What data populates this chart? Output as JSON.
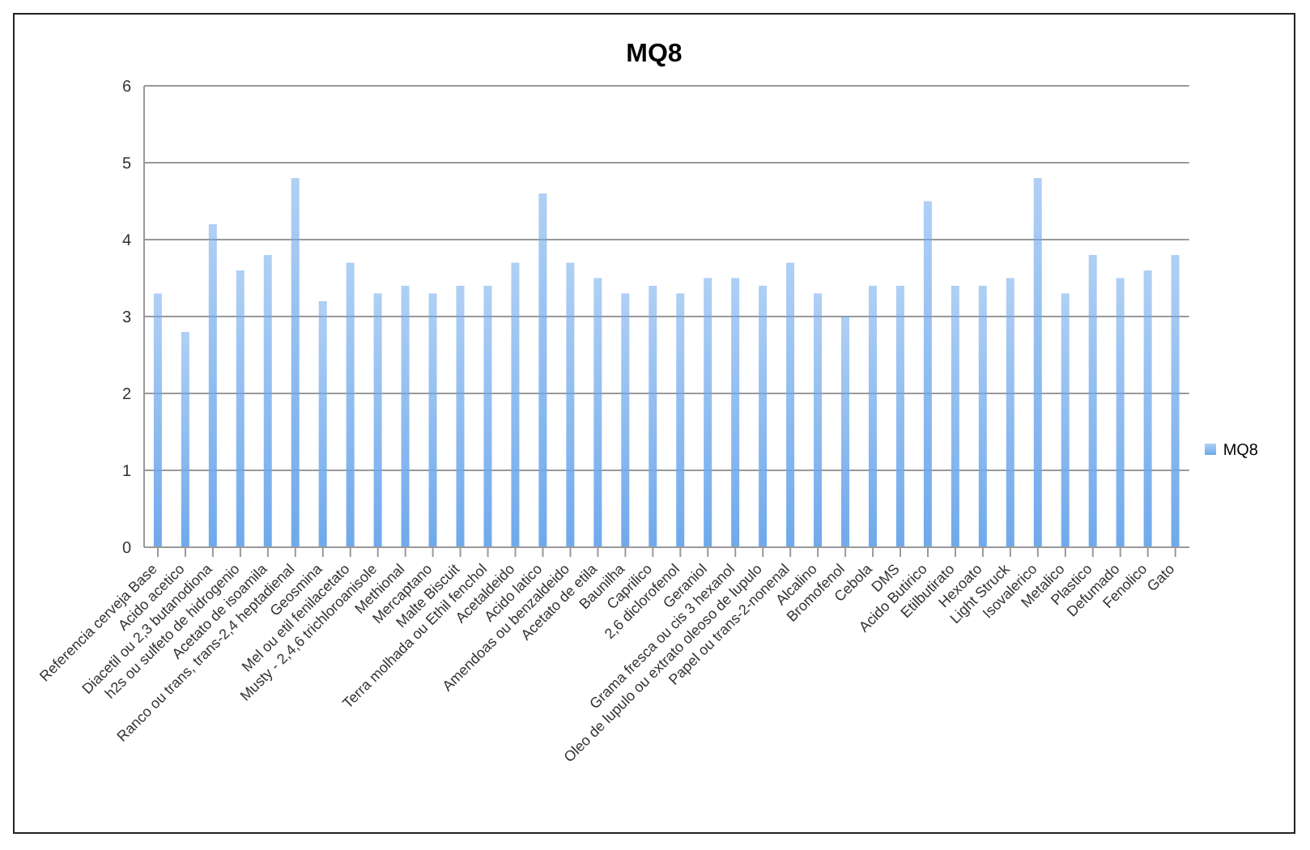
{
  "chart_data": {
    "type": "bar",
    "title": "MQ8",
    "categories": [
      "Referencia cerveja Base",
      "Acido acetico",
      "Diacetil ou 2,3 butanodiona",
      "h2s ou sulfeto de hidrogenio",
      "Acetato de isoamila",
      "Ranco ou trans, trans-2,4 heptadienal",
      "Geosmina",
      "Mel ou etil fenilacetato",
      "Musty - 2,4,6 trichloroanisole",
      "Methional",
      "Mercaptano",
      "Malte Biscuit",
      "Terra molhada ou Ethil fenchol",
      "Acetaldeido",
      "Acido latico",
      "Amendoas ou benzaldeido",
      "Acetato de etila",
      "Baunilha",
      "Caprilico",
      "2,6 diclorofenol",
      "Geraniol",
      "Grama fresca ou cis 3 hexanol",
      "Oleo de lupulo ou extrato oleoso de lupulo",
      "Papel ou trans-2-nonenal",
      "Alcalino",
      "Bromofenol",
      "Cebola",
      "DMS",
      "Acido Butirico",
      "Etilbutirato",
      "Hexoato",
      "Light Struck",
      "Isovalerico",
      "Metalico",
      "Plastico",
      "Defumado",
      "Fenolico",
      "Gato"
    ],
    "series": [
      {
        "name": "MQ8",
        "color": "#6fa9ec",
        "values": [
          3.3,
          2.8,
          4.2,
          3.6,
          3.8,
          4.8,
          3.2,
          3.7,
          3.3,
          3.4,
          3.3,
          3.4,
          3.4,
          3.7,
          4.6,
          3.7,
          3.5,
          3.3,
          3.4,
          3.3,
          3.5,
          3.5,
          3.4,
          3.7,
          3.3,
          3.0,
          3.4,
          3.4,
          4.5,
          3.4,
          3.4,
          3.5,
          4.8,
          3.3,
          3.8,
          3.5,
          3.6,
          3.8
        ]
      }
    ],
    "ylim": [
      0,
      6
    ],
    "yticks": [
      0,
      1,
      2,
      3,
      4,
      5,
      6
    ],
    "grid": "y",
    "legend": "right"
  }
}
